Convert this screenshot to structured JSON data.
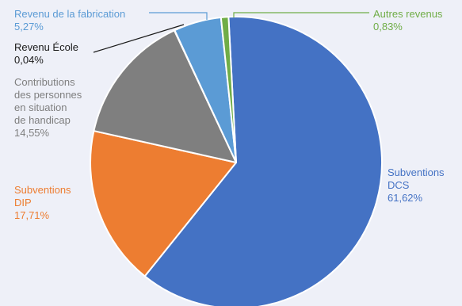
{
  "chart_data": {
    "type": "pie",
    "slices": [
      {
        "id": "dcs",
        "label_lines": [
          "Subventions",
          "DCS"
        ],
        "value_text": "61,62%",
        "value": 61.62,
        "color": "#4472c4"
      },
      {
        "id": "dip",
        "label_lines": [
          "Subventions",
          "DIP"
        ],
        "value_text": "17,71%",
        "value": 17.71,
        "color": "#ed7d31"
      },
      {
        "id": "handicap",
        "label_lines": [
          "Contributions",
          "des personnes",
          "en situation",
          "de handicap"
        ],
        "value_text": "14,55%",
        "value": 14.55,
        "color": "#7f7f7f"
      },
      {
        "id": "ecole",
        "label_lines": [
          "Revenu École"
        ],
        "value_text": "0,04%",
        "value": 0.04,
        "color": "#1a1a1a"
      },
      {
        "id": "fabrication",
        "label_lines": [
          "Revenu de la fabrication"
        ],
        "value_text": "5,27%",
        "value": 5.27,
        "color": "#5b9bd5"
      },
      {
        "id": "autres",
        "label_lines": [
          "Autres revenus"
        ],
        "value_text": "0,83%",
        "value": 0.83,
        "color": "#70ad47"
      }
    ]
  }
}
